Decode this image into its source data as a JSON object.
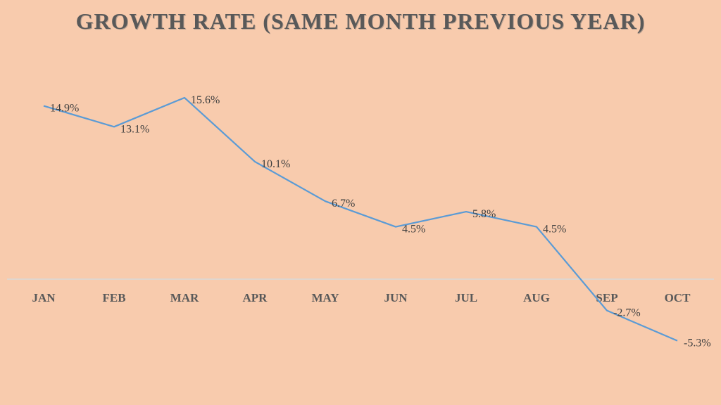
{
  "chart_data": {
    "type": "line",
    "title": "Growth Rate (Same Month Previous Year)",
    "categories": [
      "JAN",
      "FEB",
      "MAR",
      "APR",
      "MAY",
      "JUN",
      "JUL",
      "AUG",
      "SEP",
      "OCT"
    ],
    "series": [
      {
        "name": "Growth Rate",
        "values": [
          14.9,
          13.1,
          15.6,
          10.1,
          6.7,
          4.5,
          5.8,
          4.5,
          -2.7,
          -5.3
        ]
      }
    ],
    "data_labels": [
      "14.9%",
      "13.1%",
      "15.6%",
      "10.1%",
      "6.7%",
      "4.5%",
      "5.8%",
      "4.5%",
      "-2.7%",
      "-5.3%"
    ],
    "xlabel": "",
    "ylabel": "",
    "grid": false,
    "legend": "none",
    "colors": {
      "background": "#F8CBAD",
      "line": "#5B9BD5",
      "axis": "#D9D9D9",
      "text": "#595959"
    }
  }
}
